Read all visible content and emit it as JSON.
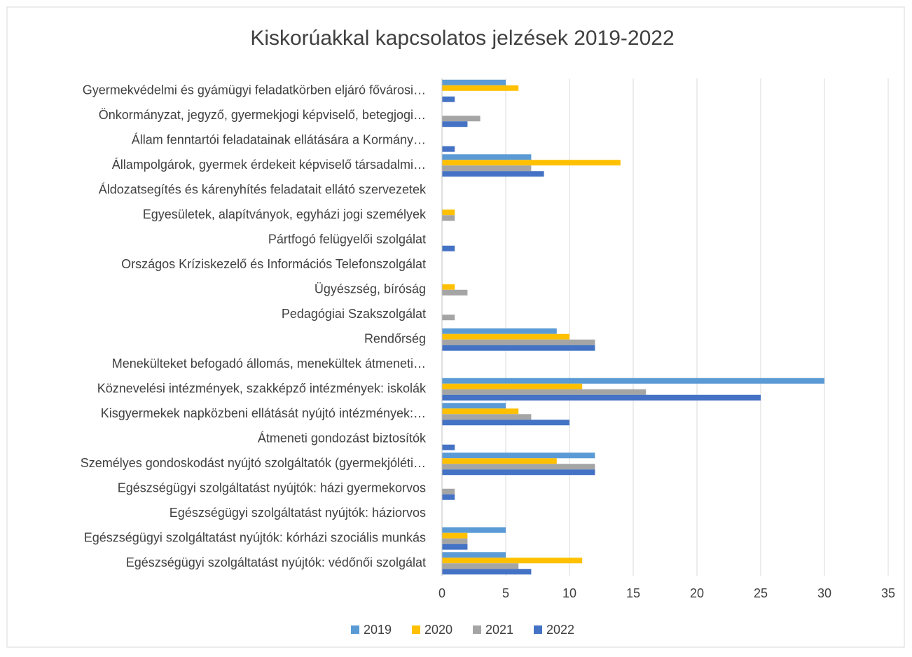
{
  "chart_data": {
    "type": "bar",
    "orientation": "horizontal",
    "title": "Kiskorúakkal kapcsolatos jelzések 2019-2022",
    "categories": [
      "Gyermekvédelmi és gyámügyi feladatkörben eljáró fővárosi…",
      "Önkormányzat, jegyző, gyermekjogi képviselő, betegjogi…",
      "Állam fenntartói feladatainak ellátására a Kormány…",
      "Állampolgárok, gyermek érdekeit képviselő társadalmi…",
      "Áldozatsegítés és kárenyhítés feladatait ellátó szervezetek",
      "Egyesületek, alapítványok, egyházi jogi személyek",
      "Pártfogó felügyelői szolgálat",
      "Országos Kríziskezelő és Információs Telefonszolgálat",
      "Ügyészség, bíróság",
      "Pedagógiai Szakszolgálat",
      "Rendőrség",
      "Menekülteket befogadó állomás, menekültek átmeneti…",
      "Köznevelési intézmények, szakképző intézmények: iskolák",
      "Kisgyermekek napközbeni ellátását nyújtó intézmények:…",
      "Átmeneti gondozást biztosítók",
      "Személyes gondoskodást nyújtó szolgáltatók (gyermekjóléti…",
      "Egészségügyi szolgáltatást nyújtók: házi gyermekorvos",
      "Egészségügyi szolgáltatást nyújtók: háziorvos",
      "Egészségügyi szolgáltatást nyújtók: kórházi szociális munkás",
      "Egészségügyi szolgáltatást nyújtók: védőnői szolgálat"
    ],
    "series": [
      {
        "name": "2019",
        "color": "#5b9bd5",
        "values": [
          5,
          0,
          0,
          7,
          0,
          0,
          0,
          0,
          0,
          0,
          9,
          0,
          30,
          5,
          0,
          12,
          0,
          0,
          5,
          5
        ]
      },
      {
        "name": "2020",
        "color": "#ffc000",
        "values": [
          6,
          0,
          0,
          14,
          0,
          1,
          0,
          0,
          1,
          0,
          10,
          0,
          11,
          6,
          0,
          9,
          0,
          0,
          2,
          11
        ]
      },
      {
        "name": "2021",
        "color": "#a5a5a5",
        "values": [
          0,
          3,
          0,
          7,
          0,
          1,
          0,
          0,
          2,
          1,
          12,
          0,
          16,
          7,
          0,
          12,
          1,
          0,
          2,
          6
        ]
      },
      {
        "name": "2022",
        "color": "#4472c4",
        "values": [
          1,
          2,
          1,
          8,
          0,
          0,
          1,
          0,
          0,
          0,
          12,
          0,
          25,
          10,
          1,
          12,
          1,
          0,
          2,
          7
        ]
      }
    ],
    "xlim": [
      0,
      35
    ],
    "xticks": [
      0,
      5,
      10,
      15,
      20,
      25,
      30,
      35
    ],
    "grid": true,
    "legend": "bottom"
  }
}
